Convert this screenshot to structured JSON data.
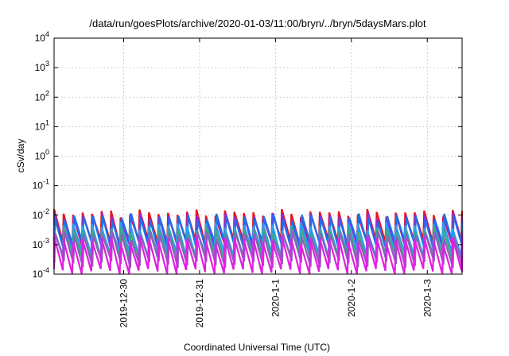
{
  "chart_data": {
    "type": "line",
    "title": "/data/run/goesPlots/archive/2020-01-03/11:00/bryn/../bryn/5daysMars.plot",
    "xlabel": "Coordinated Universal Time (UTC)",
    "ylabel": "cSv/day",
    "x_scale": "time",
    "y_scale": "log",
    "ylim": [
      0.0001,
      10000
    ],
    "xlim": [
      "2019-12-29T02:00",
      "2020-01-03T11:00"
    ],
    "grid": true,
    "legend": "none",
    "x_ticks": [
      {
        "value": "2019-12-30",
        "label": "2019-12-30"
      },
      {
        "value": "2019-12-31",
        "label": "2019-12-31"
      },
      {
        "value": "2020-01-01",
        "label": "2020-1-1"
      },
      {
        "value": "2020-01-02",
        "label": "2020-1-2"
      },
      {
        "value": "2020-01-03",
        "label": "2020-1-3"
      }
    ],
    "y_ticks": [
      {
        "value": 0.0001,
        "base": "10",
        "exp": "-4"
      },
      {
        "value": 0.001,
        "base": "10",
        "exp": "-3"
      },
      {
        "value": 0.01,
        "base": "10",
        "exp": "-2"
      },
      {
        "value": 0.1,
        "base": "10",
        "exp": "-1"
      },
      {
        "value": 1,
        "base": "10",
        "exp": "0"
      },
      {
        "value": 10,
        "base": "10",
        "exp": "1"
      },
      {
        "value": 100,
        "base": "10",
        "exp": "2"
      },
      {
        "value": 1000,
        "base": "10",
        "exp": "3"
      },
      {
        "value": 10000,
        "base": "10",
        "exp": "4"
      }
    ],
    "sawtooth_period_hours": 3,
    "series": [
      {
        "color": "#e8141c",
        "peak": 0.012,
        "trough": 0.0012
      },
      {
        "color": "#8a2be2",
        "peak": 0.0095,
        "trough": 0.0009
      },
      {
        "color": "#1f6fe8",
        "peak": 0.0085,
        "trough": 0.00085
      },
      {
        "color": "#2a9df0",
        "peak": 0.0045,
        "trough": 0.0005
      },
      {
        "color": "#3aa88a",
        "peak": 0.003,
        "trough": 0.00035
      },
      {
        "color": "#8e5fbf",
        "peak": 0.0022,
        "trough": 0.00022
      },
      {
        "color": "#e020e0",
        "peak": 0.0015,
        "trough": 0.00012
      }
    ]
  }
}
